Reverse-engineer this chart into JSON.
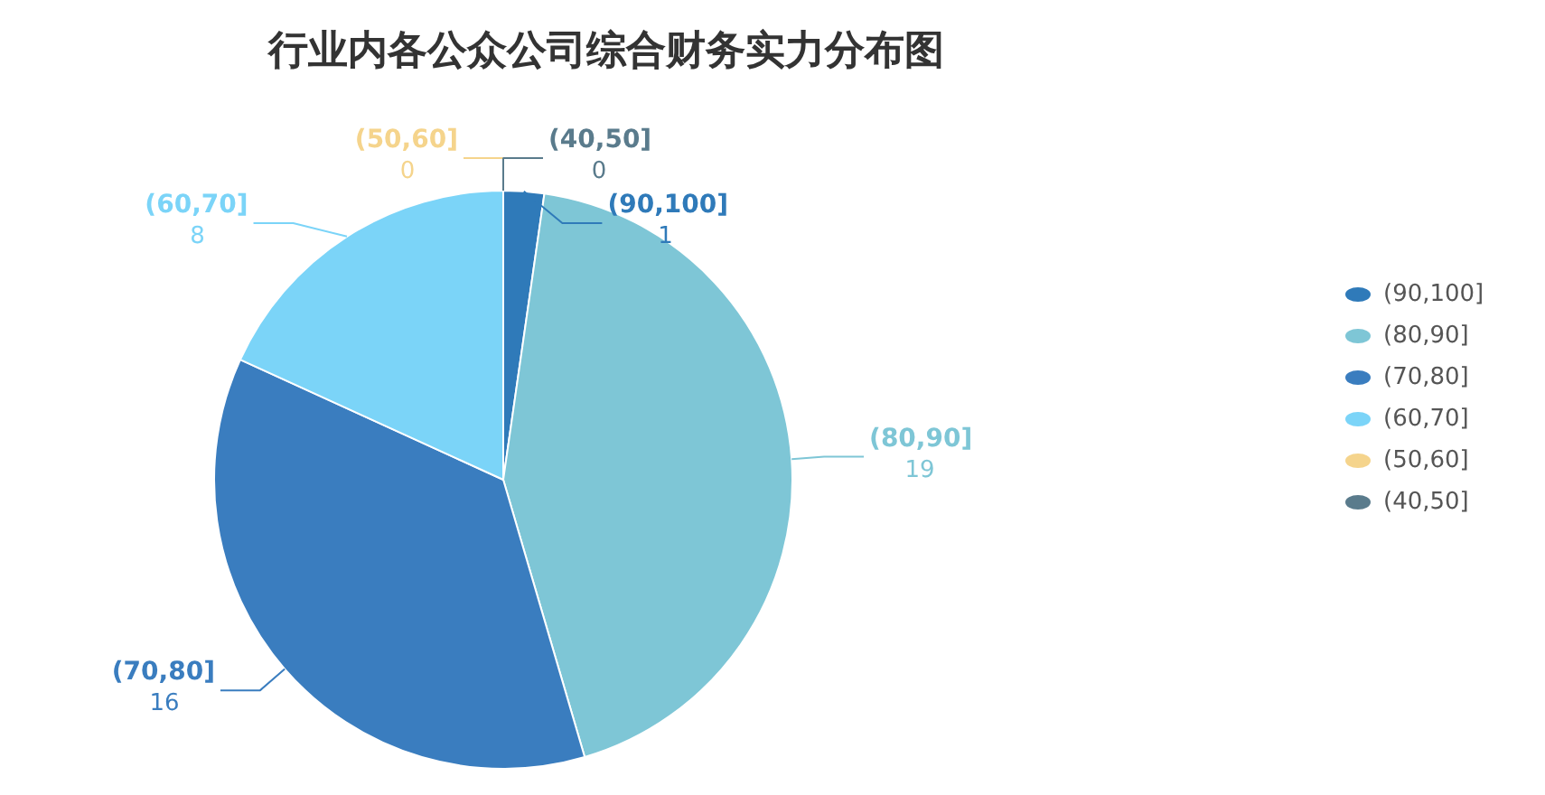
{
  "chart_data": {
    "type": "pie",
    "title": "行业内各公众公司综合财务实力分布图",
    "categories": [
      "(90,100]",
      "(80,90]",
      "(70,80]",
      "(60,70]",
      "(50,60]",
      "(40,50]"
    ],
    "values": [
      1,
      19,
      16,
      8,
      0,
      0
    ],
    "colors": [
      "#2f7ab9",
      "#7ec6d6",
      "#3a7dbf",
      "#7bd4f8",
      "#f5d48c",
      "#5a7b8c"
    ],
    "value_labels": [
      "1",
      "19",
      "16",
      "8",
      "0",
      "0"
    ],
    "legend": "right"
  }
}
